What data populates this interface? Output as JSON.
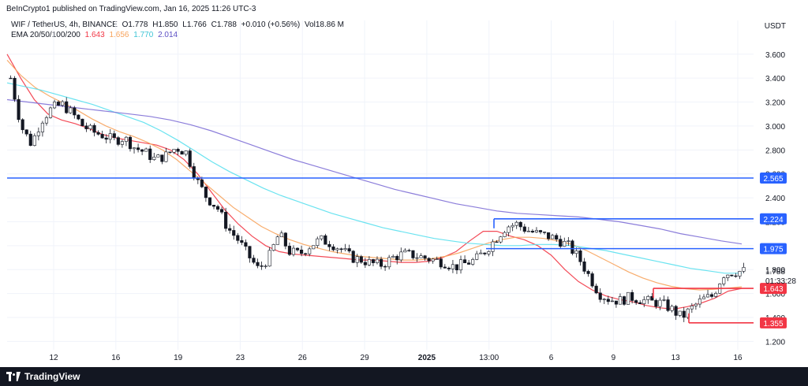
{
  "header": {
    "publisher_line": "BeInCrypto1 published on TradingView.com, Jan 16, 2025 11:26 UTC-3"
  },
  "legend": {
    "symbol": "WIF / TetherUS, 4h, BINANCE",
    "open": "O1.778",
    "high": "H1.850",
    "low": "L1.766",
    "close": "C1.788",
    "change": "+0.010 (+0.56%)",
    "volume": "Vol18.86 M",
    "ema_label": "EMA 20/50/100/200",
    "ema_values": [
      "1.643",
      "1.656",
      "1.770",
      "2.014"
    ]
  },
  "currency": "USDT",
  "brand": "TradingView",
  "colors": {
    "up_candle": "#ffffff",
    "candle_outline": "#131722",
    "down_candle": "#131722",
    "ema20": "#f23645",
    "ema50": "#f7a35c",
    "ema100": "#5ae0ee",
    "ema200": "#7e6fd6",
    "level_blue": "#2962ff",
    "level_red": "#f23645"
  },
  "chart_data": {
    "type": "candlestick",
    "title": "WIF / TetherUS, 4h, BINANCE",
    "ylabel": "USDT",
    "ylim": [
      1.13,
      3.75
    ],
    "y_ticks": [
      "3.600",
      "3.400",
      "3.200",
      "3.000",
      "2.800",
      "2.600",
      "2.400",
      "2.200",
      "2.000",
      "1.800",
      "1.600",
      "1.400",
      "1.200"
    ],
    "x_ticks": [
      "12",
      "16",
      "19",
      "23",
      "26",
      "29",
      "2025",
      "13:00",
      "6",
      "9",
      "13",
      "16"
    ],
    "last_price": {
      "value": "1.788",
      "countdown": "01:33:28"
    },
    "levels": [
      {
        "label": "2.565",
        "value": 2.565,
        "color": "blue"
      },
      {
        "label": "2.224",
        "value": 2.224,
        "color": "blue"
      },
      {
        "label": "1.975",
        "value": 1.975,
        "color": "blue"
      },
      {
        "label": "1.643",
        "value": 1.643,
        "color": "red"
      },
      {
        "label": "1.355",
        "value": 1.355,
        "color": "red"
      }
    ],
    "price_path": [
      3.4,
      3.0,
      2.85,
      3.05,
      3.15,
      3.18,
      3.1,
      3.0,
      2.95,
      2.92,
      2.88,
      2.9,
      2.82,
      2.78,
      2.72,
      2.75,
      2.82,
      2.78,
      2.55,
      2.4,
      2.32,
      2.15,
      2.05,
      1.92,
      1.8,
      1.9,
      2.1,
      1.95,
      1.93,
      2.0,
      2.05,
      2.02,
      1.97,
      1.9,
      1.88,
      1.85,
      1.84,
      1.9,
      1.93,
      1.92,
      1.9,
      1.88,
      1.86,
      1.82,
      1.85,
      1.88,
      1.96,
      2.06,
      2.16,
      2.18,
      2.13,
      2.1,
      2.08,
      2.05,
      2.0,
      1.9,
      1.75,
      1.6,
      1.55,
      1.54,
      1.57,
      1.55,
      1.53,
      1.52,
      1.47,
      1.4,
      1.48,
      1.55,
      1.58,
      1.76,
      1.78,
      1.788
    ],
    "series": [
      {
        "name": "EMA 20",
        "color": "ema20",
        "values": [
          3.6,
          3.4,
          3.22,
          3.1,
          3.05,
          3.02,
          2.98,
          2.93,
          2.9,
          2.88,
          2.86,
          2.84,
          2.8,
          2.72,
          2.6,
          2.45,
          2.3,
          2.18,
          2.08,
          2.0,
          1.95,
          1.93,
          1.92,
          1.91,
          1.9,
          1.89,
          1.88,
          1.88,
          1.87,
          1.86,
          1.86,
          1.87,
          1.9,
          1.95,
          2.04,
          2.12,
          2.12,
          2.08,
          2.05,
          2.0,
          1.92,
          1.8,
          1.7,
          1.63,
          1.58,
          1.55,
          1.53,
          1.5,
          1.48,
          1.47,
          1.49,
          1.52,
          1.56,
          1.62,
          1.643
        ]
      },
      {
        "name": "EMA 50",
        "color": "ema50",
        "values": [
          3.55,
          3.42,
          3.32,
          3.25,
          3.19,
          3.13,
          3.06,
          3.0,
          2.95,
          2.91,
          2.86,
          2.8,
          2.72,
          2.62,
          2.52,
          2.42,
          2.32,
          2.24,
          2.16,
          2.1,
          2.05,
          2.01,
          1.98,
          1.95,
          1.93,
          1.91,
          1.9,
          1.89,
          1.88,
          1.88,
          1.89,
          1.91,
          1.94,
          1.98,
          2.02,
          2.05,
          2.07,
          2.07,
          2.06,
          2.04,
          2.01,
          1.96,
          1.9,
          1.84,
          1.78,
          1.73,
          1.69,
          1.66,
          1.64,
          1.63,
          1.635,
          1.645,
          1.656
        ]
      },
      {
        "name": "EMA 100",
        "color": "ema100",
        "values": [
          3.36,
          3.33,
          3.3,
          3.26,
          3.22,
          3.18,
          3.13,
          3.08,
          3.03,
          2.96,
          2.88,
          2.79,
          2.7,
          2.62,
          2.55,
          2.48,
          2.42,
          2.37,
          2.32,
          2.27,
          2.23,
          2.19,
          2.15,
          2.12,
          2.09,
          2.06,
          2.04,
          2.02,
          2.01,
          2.0,
          2.0,
          2.01,
          2.01,
          2.0,
          1.98,
          1.96,
          1.93,
          1.9,
          1.87,
          1.84,
          1.81,
          1.79,
          1.77,
          1.77
        ]
      },
      {
        "name": "EMA 200",
        "color": "ema200",
        "values": [
          3.22,
          3.2,
          3.18,
          3.16,
          3.14,
          3.12,
          3.1,
          3.08,
          3.05,
          3.01,
          2.96,
          2.9,
          2.84,
          2.78,
          2.72,
          2.67,
          2.62,
          2.57,
          2.52,
          2.47,
          2.43,
          2.39,
          2.35,
          2.32,
          2.29,
          2.27,
          2.26,
          2.25,
          2.24,
          2.22,
          2.2,
          2.17,
          2.14,
          2.1,
          2.07,
          2.04,
          2.014
        ]
      }
    ]
  }
}
